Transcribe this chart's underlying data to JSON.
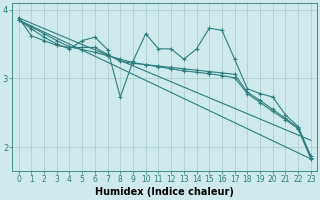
{
  "bg_color": "#ceeaea",
  "grid_color": "#aed0d0",
  "line_color": "#2d7d7d",
  "xlabel": "Humidex (Indice chaleur)",
  "xlabel_fontsize": 7,
  "tick_fontsize": 5.5,
  "ylim": [
    1.65,
    4.1
  ],
  "xlim": [
    -0.5,
    23.5
  ],
  "yticks": [
    2,
    3,
    4
  ],
  "xticks": [
    0,
    1,
    2,
    3,
    4,
    5,
    6,
    7,
    8,
    9,
    10,
    11,
    12,
    13,
    14,
    15,
    16,
    17,
    18,
    19,
    20,
    21,
    22,
    23
  ],
  "lines": [
    {
      "x": [
        0,
        1,
        2,
        3,
        4,
        5,
        6,
        7,
        8,
        9,
        10,
        11,
        12,
        13,
        14,
        15,
        16,
        17,
        18,
        19,
        20,
        21,
        22,
        23
      ],
      "y": [
        3.85,
        3.72,
        3.6,
        3.5,
        3.43,
        3.55,
        3.6,
        3.42,
        2.73,
        3.25,
        3.65,
        3.43,
        3.43,
        3.28,
        3.43,
        3.73,
        3.7,
        3.28,
        2.85,
        2.78,
        2.73,
        2.47,
        2.3,
        1.87
      ],
      "marker": true
    },
    {
      "x": [
        0,
        1,
        2,
        3,
        4,
        5,
        6,
        7,
        8,
        9,
        10,
        11,
        12,
        13,
        14,
        15,
        16,
        17,
        18,
        19,
        20,
        21,
        22,
        23
      ],
      "y": [
        3.88,
        3.62,
        3.55,
        3.48,
        3.45,
        3.45,
        3.45,
        3.35,
        3.25,
        3.22,
        3.2,
        3.18,
        3.16,
        3.14,
        3.12,
        3.1,
        3.08,
        3.06,
        2.8,
        2.68,
        2.55,
        2.42,
        2.28,
        1.85
      ],
      "marker": true
    },
    {
      "x": [
        0,
        1,
        2,
        3,
        4,
        5,
        6,
        7,
        8,
        9,
        10,
        11,
        12,
        13,
        14,
        15,
        16,
        17,
        18,
        19,
        20,
        21,
        22,
        23
      ],
      "y": [
        3.85,
        3.75,
        3.65,
        3.55,
        3.46,
        3.42,
        3.38,
        3.33,
        3.28,
        3.23,
        3.2,
        3.17,
        3.14,
        3.11,
        3.09,
        3.07,
        3.04,
        3.01,
        2.78,
        2.65,
        2.52,
        2.4,
        2.27,
        1.83
      ],
      "marker": true
    },
    {
      "x": [
        0,
        23
      ],
      "y": [
        3.85,
        1.83
      ],
      "marker": false
    },
    {
      "x": [
        0,
        23
      ],
      "y": [
        3.88,
        2.1
      ],
      "marker": false
    }
  ]
}
